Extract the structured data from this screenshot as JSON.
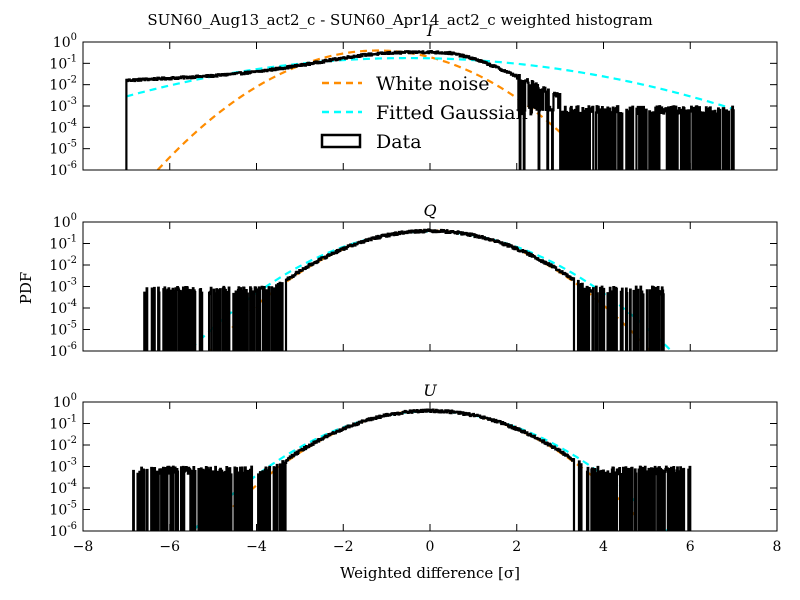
{
  "figure": {
    "suptitle": "SUN60_Aug13_act2_c - SUN60_Apr14_act2_c weighted histogram",
    "xlabel": "Weighted difference [σ]",
    "ylabel": "PDF"
  },
  "legend": {
    "placement": "upper-center of top panel",
    "entries": [
      {
        "label": "White noise",
        "style": "dashed",
        "color": "#ff8c00"
      },
      {
        "label": "Fitted Gaussian",
        "style": "dashed",
        "color": "#00ffff"
      },
      {
        "label": "Data",
        "style": "step",
        "color": "#000000"
      }
    ]
  },
  "colors": {
    "white_noise": "#ff8c00",
    "fitted_gaussian": "#00ffff",
    "data": "#000000"
  },
  "chart_data": [
    {
      "type": "line",
      "title": "I",
      "xlim": [
        -8,
        8
      ],
      "ylim": [
        1e-06,
        1
      ],
      "yscale": "log",
      "xticks": [
        -8,
        -6,
        -4,
        -2,
        0,
        2,
        4,
        6,
        8
      ],
      "show_xticklabels": false,
      "ytick_labels": [
        "10^0",
        "10^-1",
        "10^-2",
        "10^-3",
        "10^-4",
        "10^-5",
        "10^-6"
      ],
      "series": [
        {
          "name": "White noise",
          "kind": "gaussian",
          "mu": -1.2,
          "sigma": 1.0,
          "x_range": [
            -7.0,
            3.2
          ],
          "color": "#ff8c00"
        },
        {
          "name": "Fitted Gaussian",
          "kind": "gaussian",
          "mu": -0.5,
          "sigma": 2.26,
          "x_range": [
            -7.0,
            7.0
          ],
          "color": "#00ffff"
        },
        {
          "name": "Data",
          "kind": "histogram",
          "color": "#000000",
          "x_range": [
            -7.0,
            7.0
          ],
          "profile_x": [
            -7.0,
            -6.5,
            -6.0,
            -5.0,
            -4.0,
            -3.0,
            -2.0,
            -1.5,
            -1.0,
            -0.5,
            0.0,
            0.5,
            1.0,
            1.5,
            2.0,
            2.5,
            3.0
          ],
          "profile_y": [
            0.016,
            0.018,
            0.02,
            0.026,
            0.04,
            0.08,
            0.18,
            0.25,
            0.3,
            0.33,
            0.34,
            0.3,
            0.17,
            0.07,
            0.025,
            0.009,
            0.003
          ],
          "sparse_range": [
            2.0,
            7.0
          ],
          "sparse_level": 0.0007
        }
      ]
    },
    {
      "type": "line",
      "title": "Q",
      "xlim": [
        -8,
        8
      ],
      "ylim": [
        1e-06,
        1
      ],
      "yscale": "log",
      "xticks": [
        -8,
        -6,
        -4,
        -2,
        0,
        2,
        4,
        6,
        8
      ],
      "show_xticklabels": false,
      "ytick_labels": [
        "10^0",
        "10^-1",
        "10^-2",
        "10^-3",
        "10^-4",
        "10^-5",
        "10^-6"
      ],
      "series": [
        {
          "name": "White noise",
          "kind": "gaussian",
          "mu": 0.0,
          "sigma": 1.0,
          "x_range": [
            -5.5,
            5.5
          ],
          "color": "#ff8c00"
        },
        {
          "name": "Fitted Gaussian",
          "kind": "gaussian",
          "mu": 0.0,
          "sigma": 1.1,
          "x_range": [
            -5.9,
            6.0
          ],
          "color": "#00ffff"
        },
        {
          "name": "Data",
          "kind": "histogram",
          "color": "#000000",
          "x_range": [
            -6.6,
            5.4
          ],
          "core_range": [
            -4.2,
            3.9
          ],
          "core_mu": 0.0,
          "core_sigma": 1.02,
          "sparse_ranges": [
            [
              -6.6,
              -4.0
            ],
            [
              3.7,
              5.4
            ]
          ],
          "sparse_level": 0.0007
        }
      ]
    },
    {
      "type": "line",
      "title": "U",
      "xlim": [
        -8,
        8
      ],
      "ylim": [
        1e-06,
        1
      ],
      "yscale": "log",
      "xticks": [
        -8,
        -6,
        -4,
        -2,
        0,
        2,
        4,
        6,
        8
      ],
      "xtick_labels": [
        "−8",
        "−6",
        "−4",
        "−2",
        "0",
        "2",
        "4",
        "6",
        "8"
      ],
      "show_xticklabels": true,
      "ytick_labels": [
        "10^0",
        "10^-1",
        "10^-2",
        "10^-3",
        "10^-4",
        "10^-5",
        "10^-6"
      ],
      "series": [
        {
          "name": "White noise",
          "kind": "gaussian",
          "mu": 0.0,
          "sigma": 1.0,
          "x_range": [
            -5.3,
            5.3
          ],
          "color": "#ff8c00"
        },
        {
          "name": "Fitted Gaussian",
          "kind": "gaussian",
          "mu": 0.0,
          "sigma": 1.08,
          "x_range": [
            -5.6,
            5.6
          ],
          "color": "#00ffff"
        },
        {
          "name": "Data",
          "kind": "histogram",
          "color": "#000000",
          "x_range": [
            -6.9,
            6.0
          ],
          "core_range": [
            -4.2,
            3.9
          ],
          "core_mu": 0.0,
          "core_sigma": 1.02,
          "sparse_ranges": [
            [
              -6.9,
              -4.0
            ],
            [
              3.4,
              6.0
            ]
          ],
          "sparse_level": 0.0007
        }
      ]
    }
  ]
}
